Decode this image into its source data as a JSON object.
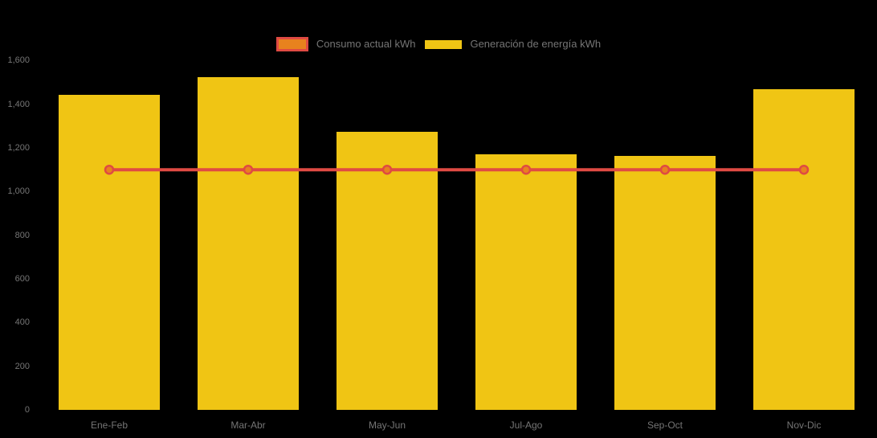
{
  "background": "#000000",
  "text_color": "#757575",
  "legend": {
    "items": [
      {
        "label": "Consumo actual kWh",
        "series_type": "line",
        "swatch_fill": "#E8821E",
        "swatch_border": "#DF4A43"
      },
      {
        "label": "Generación de energía kWh",
        "series_type": "column",
        "swatch_fill": "#F0C514"
      }
    ]
  },
  "chart_data": {
    "type": "bar",
    "subtype": "column series with constant line series overlay",
    "title": "",
    "xlabel": "",
    "ylabel": "",
    "categories": [
      "Ene-Feb",
      "Mar-Abr",
      "May-Jun",
      "Jul-Ago",
      "Sep-Oct",
      "Nov-Dic"
    ],
    "series": [
      {
        "name": "Generación de energía kWh",
        "type": "column",
        "color": "#F0C514",
        "values": [
          1445,
          1525,
          1275,
          1170,
          1165,
          1470
        ]
      },
      {
        "name": "Consumo actual kWh",
        "type": "line",
        "color": "#DF4A43",
        "marker_fill": "#E8821E",
        "marker_stroke": "#DF4A43",
        "values": [
          1100,
          1100,
          1100,
          1100,
          1100,
          1100
        ]
      }
    ],
    "ylim": [
      0,
      1600
    ],
    "y_tick_step": 200,
    "y_tick_labels": [
      "0",
      "200",
      "400",
      "600",
      "800",
      "1,000",
      "1,200",
      "1,400",
      "1,600"
    ],
    "grid": "off",
    "legend_position": "top"
  }
}
